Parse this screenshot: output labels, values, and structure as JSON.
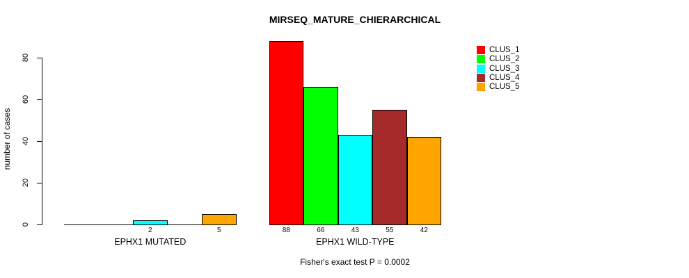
{
  "chart_data": {
    "type": "bar",
    "title": "MIRSEQ_MATURE_CHIERARCHICAL",
    "ylabel": "number of cases",
    "yticks": [
      0,
      20,
      40,
      60,
      80
    ],
    "ylim": [
      0,
      88
    ],
    "grid": false,
    "legend_position": "top-right",
    "legend": [
      {
        "label": "CLUS_1",
        "color": "#FF0000"
      },
      {
        "label": "CLUS_2",
        "color": "#00FF00"
      },
      {
        "label": "CLUS_3",
        "color": "#00FFFF"
      },
      {
        "label": "CLUS_4",
        "color": "#A52A2A"
      },
      {
        "label": "CLUS_5",
        "color": "#FFA500"
      }
    ],
    "groups": [
      {
        "label": "EPHX1 MUTATED",
        "values": [
          0,
          0,
          2,
          0,
          5
        ],
        "bar_labels": [
          "",
          "",
          "2",
          "",
          "5"
        ]
      },
      {
        "label": "EPHX1 WILD-TYPE",
        "values": [
          88,
          66,
          43,
          55,
          42
        ],
        "bar_labels": [
          "88",
          "66",
          "43",
          "55",
          "42"
        ]
      }
    ],
    "annotation": "Fisher's exact test P = 0.0002"
  }
}
